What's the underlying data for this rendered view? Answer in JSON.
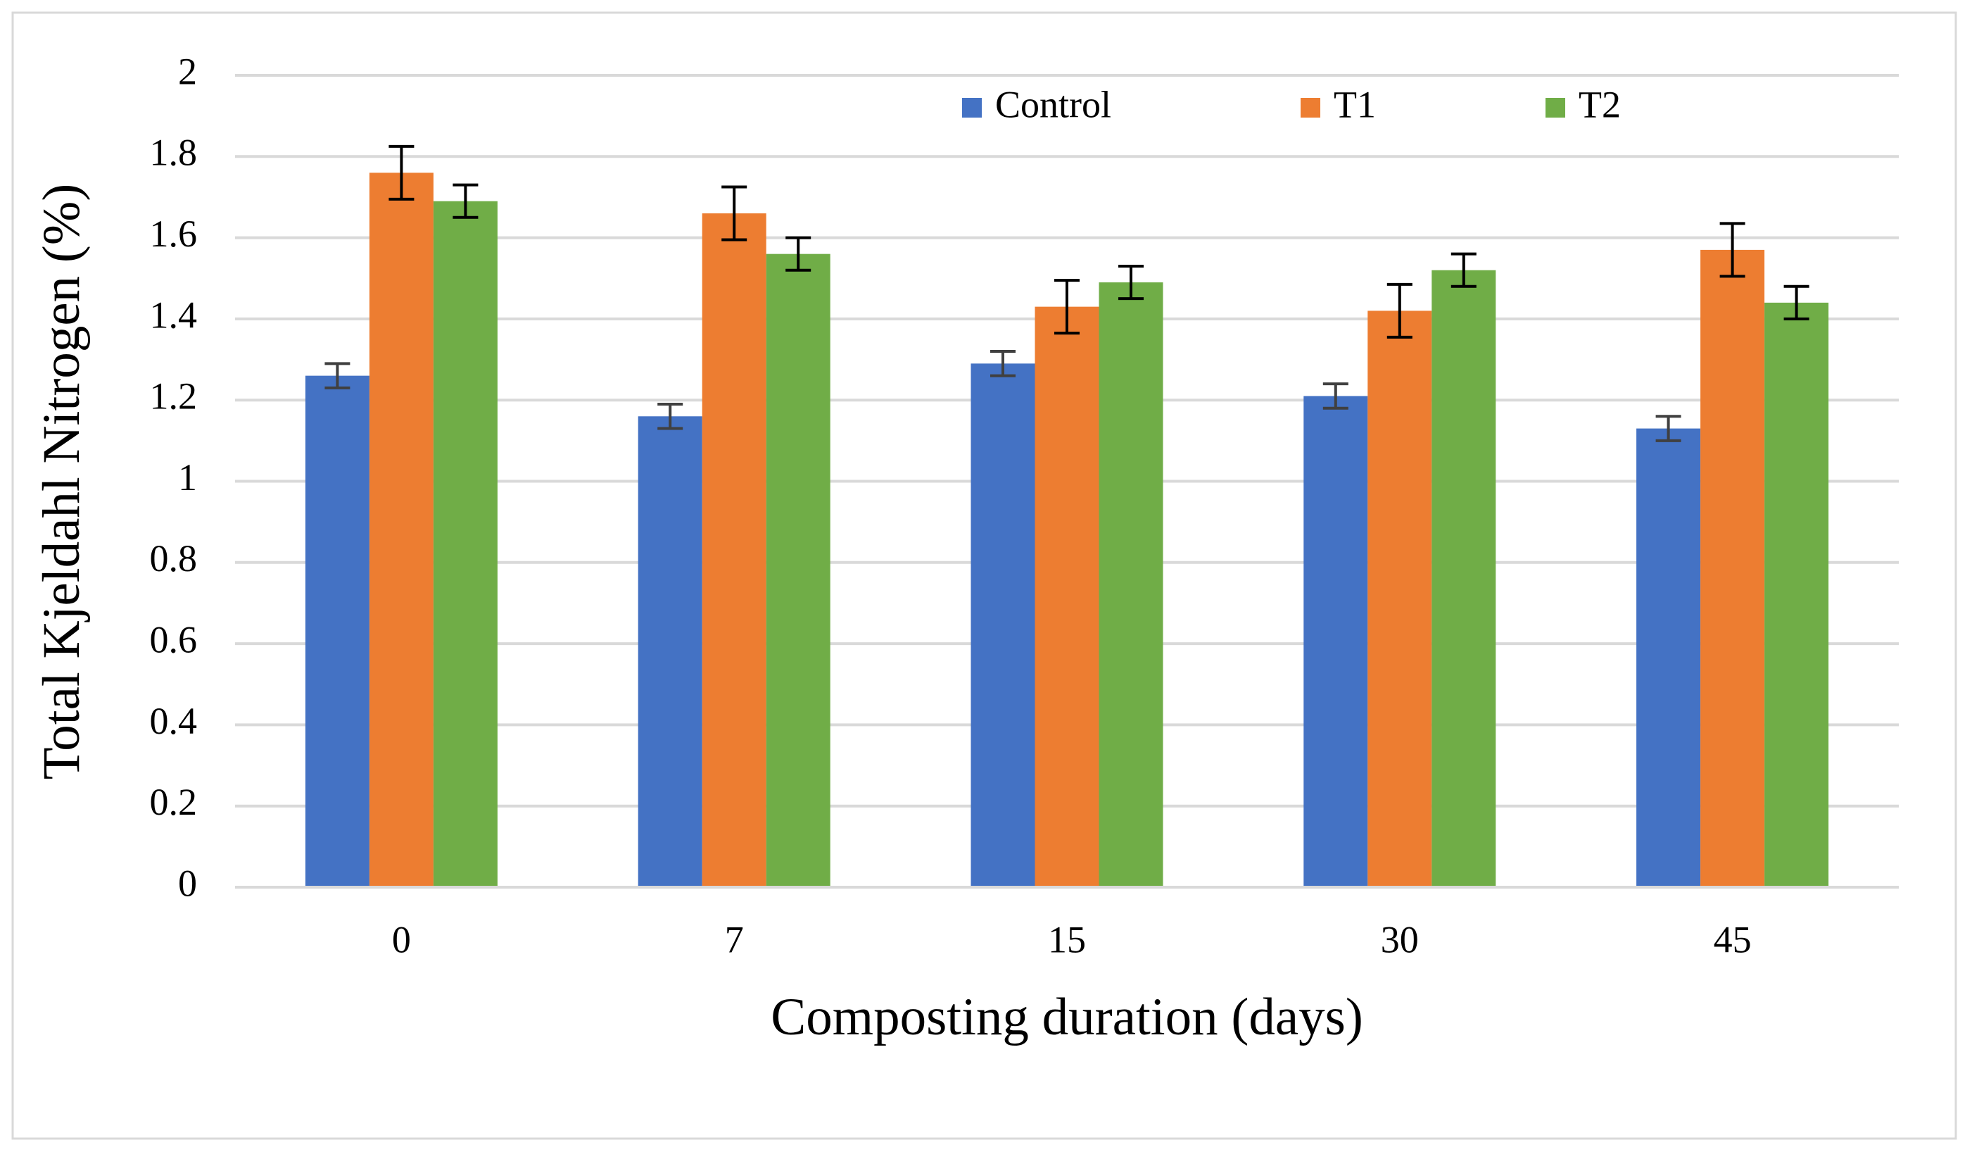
{
  "chart_data": {
    "type": "bar",
    "x_label": "Composting duration (days)",
    "y_label": "Total Kjeldahl Nitrogen (%)",
    "categories": [
      "0",
      "7",
      "15",
      "30",
      "45"
    ],
    "series": [
      {
        "name": "Control",
        "color": "#4472c4",
        "values": [
          1.26,
          1.16,
          1.29,
          1.21,
          1.13
        ],
        "errors": [
          0.03,
          0.03,
          0.03,
          0.03,
          0.03
        ],
        "error_color": "#404040"
      },
      {
        "name": "T1",
        "color": "#ed7d31",
        "values": [
          1.76,
          1.66,
          1.43,
          1.42,
          1.57
        ],
        "errors": [
          0.065,
          0.065,
          0.065,
          0.065,
          0.065
        ],
        "error_color": "#000000"
      },
      {
        "name": "T2",
        "color": "#70ad47",
        "values": [
          1.69,
          1.56,
          1.49,
          1.52,
          1.44
        ],
        "errors": [
          0.04,
          0.04,
          0.04,
          0.04,
          0.04
        ],
        "error_color": "#000000"
      }
    ],
    "ylim": [
      0,
      2
    ],
    "yticks": [
      0,
      0.2,
      0.4,
      0.6,
      0.8,
      1,
      1.2,
      1.4,
      1.6,
      1.8,
      2
    ],
    "grid": true,
    "legend": "top"
  }
}
